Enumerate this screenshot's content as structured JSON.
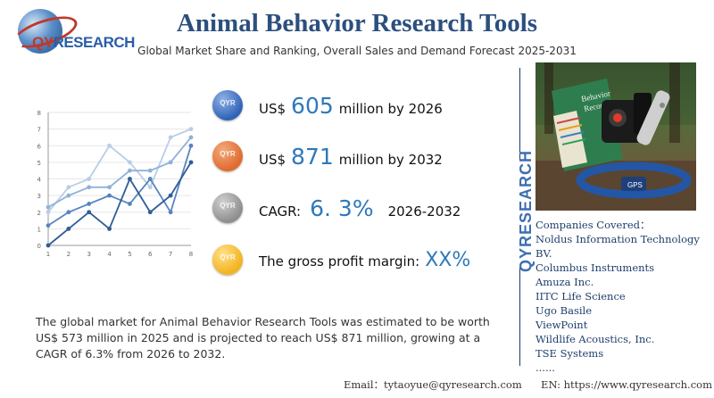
{
  "logo": {
    "brand_prefix": "QY",
    "brand_suffix": "RESEARCH"
  },
  "header": {
    "title": "Animal Behavior Research Tools",
    "subtitle": "Global Market Share and Ranking, Overall Sales and Demand Forecast 2025-2031"
  },
  "stats": [
    {
      "prefix": "US$",
      "value": "605",
      "suffix": "million by 2026",
      "badge": "QYR",
      "color": "#2f63b7"
    },
    {
      "prefix": "US$",
      "value": "871",
      "suffix": "million by 2032",
      "badge": "QYR",
      "color": "#e06b2e"
    },
    {
      "prefix": "CAGR:",
      "value": "6. 3%",
      "suffix": "2026-2032",
      "badge": "QYR",
      "color": "#8e8e8e"
    },
    {
      "prefix": "The gross profit margin:",
      "value": "XX%",
      "suffix": "",
      "badge": "QYR",
      "color": "#f2b31c"
    }
  ],
  "vertical_brand": "QYRESEARCH",
  "photo": {
    "book_label_1": "Behavior",
    "book_label_2": "Record",
    "collar_label": "GPS"
  },
  "companies": {
    "heading": "Companies Covered：",
    "items": [
      "Noldus Information Technology",
      "BV.",
      "Columbus Instruments",
      "Amuza Inc.",
      "IITC Life Science",
      "Ugo Basile",
      "ViewPoint",
      "Wildlife Acoustics, Inc.",
      "TSE Systems",
      "......"
    ]
  },
  "paragraph": "The global market for Animal Behavior Research Tools was estimated to be worth US$ 573 million in 2025 and is projected to reach US$ 871 million, growing at a CAGR of 6.3% from 2026 to 2032.",
  "footer": {
    "email": "Email：tytaoyue@qyresearch.com",
    "site": "EN: https://www.qyresearch.com"
  },
  "chart_data": {
    "type": "line",
    "x": [
      1,
      2,
      3,
      4,
      5,
      6,
      7,
      8
    ],
    "ylim": [
      0,
      8
    ],
    "yticks": [
      0,
      1,
      2,
      3,
      4,
      5,
      6,
      7,
      8
    ],
    "grid": true,
    "series": [
      {
        "values": [
          2.0,
          3.5,
          4.0,
          6.0,
          5.0,
          3.5,
          6.5,
          7.0
        ],
        "color": "#b9cde6"
      },
      {
        "values": [
          2.3,
          3.0,
          3.5,
          3.5,
          4.5,
          4.5,
          5.0,
          6.5
        ],
        "color": "#8fb1d9"
      },
      {
        "values": [
          1.2,
          2.0,
          2.5,
          3.0,
          2.5,
          4.0,
          2.0,
          6.0
        ],
        "color": "#5784bf"
      },
      {
        "values": [
          0.0,
          1.0,
          2.0,
          1.0,
          4.0,
          2.0,
          3.0,
          5.0
        ],
        "color": "#2f5d97"
      }
    ],
    "colors": {
      "axis": "#999999",
      "grid": "#e6e6e6",
      "tick": "#666666"
    }
  }
}
